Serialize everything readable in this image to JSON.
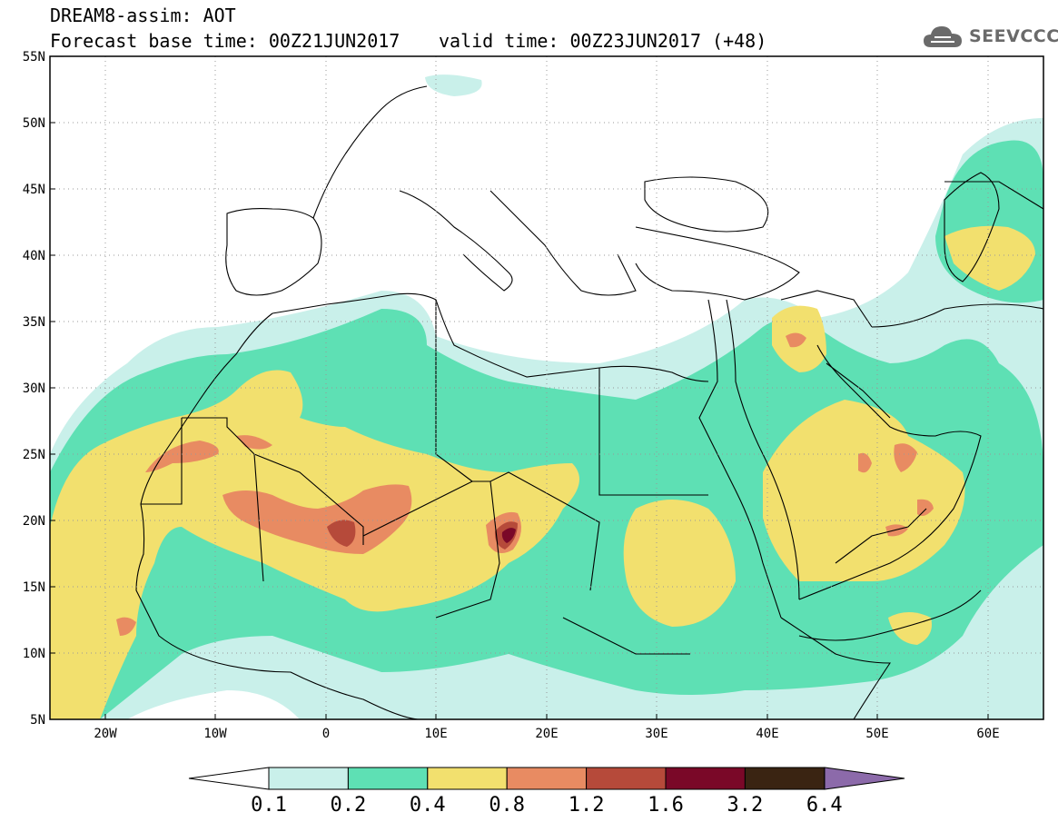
{
  "header": {
    "title": "DREAM8-assim: AOT",
    "base_time": "Forecast base time: 00Z21JUN2017",
    "valid_time": "valid time: 00Z23JUN2017 (+48)"
  },
  "logo": {
    "icon": "cloud-logo-icon",
    "text": "SEEVCCC"
  },
  "axes": {
    "lat_labels": [
      "55N",
      "50N",
      "45N",
      "40N",
      "35N",
      "30N",
      "25N",
      "20N",
      "15N",
      "10N",
      "5N"
    ],
    "lon_labels": [
      "20W",
      "10W",
      "0",
      "10E",
      "20E",
      "30E",
      "40E",
      "50E",
      "60E"
    ]
  },
  "colorbar": {
    "labels": [
      "0.1",
      "0.2",
      "0.4",
      "0.8",
      "1.2",
      "1.6",
      "3.2",
      "6.4"
    ],
    "colors": [
      "#c9f0ea",
      "#5ee0b4",
      "#f2e06e",
      "#e88b62",
      "#b64a3a",
      "#7a0828",
      "#3a2412"
    ],
    "under_color": "#ffffff",
    "over_color": "#8c6aaa"
  },
  "field_colors": {
    "c01": "#c9f0ea",
    "c02": "#5ee0b4",
    "c04": "#f2e06e",
    "c08": "#e88b62",
    "c12": "#b64a3a",
    "c16": "#7a0828"
  }
}
